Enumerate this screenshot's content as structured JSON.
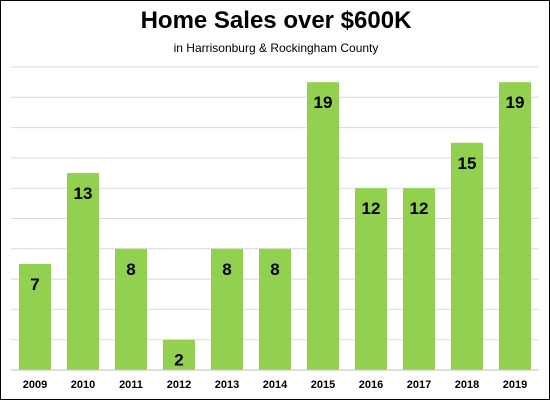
{
  "chart_data": {
    "type": "bar",
    "title": "Home Sales over $600K",
    "subtitle": "in Harrisonburg & Rockingham County",
    "categories": [
      "2009",
      "2010",
      "2011",
      "2012",
      "2013",
      "2014",
      "2015",
      "2016",
      "2017",
      "2018",
      "2019"
    ],
    "values": [
      7,
      13,
      8,
      2,
      8,
      8,
      19,
      12,
      12,
      15,
      19
    ],
    "xlabel": "",
    "ylabel": "",
    "ylim": [
      0,
      20
    ],
    "grid": true,
    "legend": "none",
    "bar_color": "#92d050",
    "grid_color": "#d9d9d9",
    "axis_color": "#bfbfbf"
  }
}
